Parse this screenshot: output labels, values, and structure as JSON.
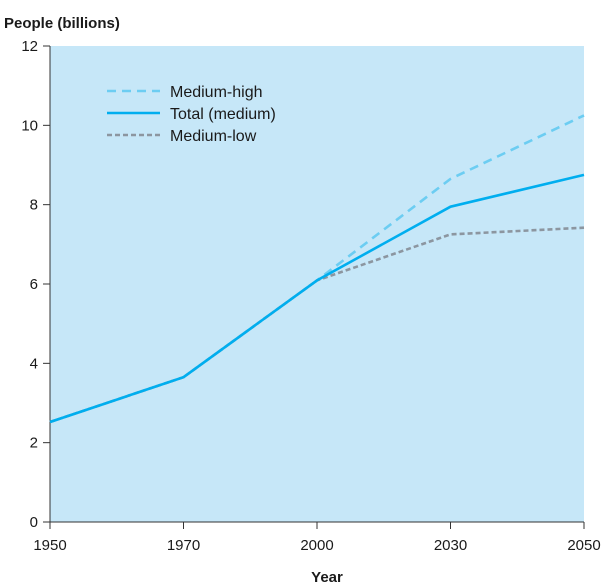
{
  "chart_data": {
    "type": "line",
    "ylabel": "People (billions)",
    "xlabel": "Year",
    "x": [
      1950,
      1970,
      2000,
      2030,
      2050
    ],
    "x_tick_labels": [
      "1950",
      "1970",
      "2000",
      "2030",
      "2050"
    ],
    "y_ticks": [
      0,
      2,
      4,
      6,
      8,
      10,
      12
    ],
    "y_tick_labels": [
      "0",
      "2",
      "4",
      "6",
      "8",
      "10",
      "12"
    ],
    "xlim": [
      1950,
      2050
    ],
    "ylim": [
      0,
      12
    ],
    "x_scale": "categorical-equal-spacing",
    "grid": false,
    "legend_position": "top-left",
    "plot_background": "#c6e7f8",
    "series": [
      {
        "name": "Medium-high",
        "style": "dashed",
        "color": "#6ccdf2",
        "values": [
          2.52,
          3.65,
          6.09,
          8.65,
          10.25
        ]
      },
      {
        "name": "Total (medium)",
        "style": "solid",
        "color": "#00aeef",
        "values": [
          2.52,
          3.65,
          6.09,
          7.95,
          8.75
        ]
      },
      {
        "name": "Medium-low",
        "style": "dotted",
        "color": "#8c96a0",
        "values": [
          2.52,
          3.65,
          6.09,
          7.25,
          7.42
        ]
      }
    ]
  }
}
